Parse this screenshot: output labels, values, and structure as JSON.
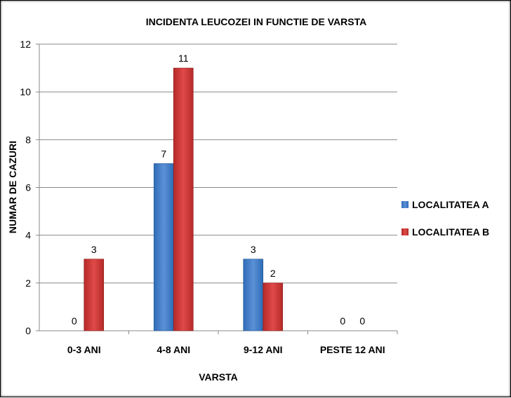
{
  "chart_data": {
    "type": "bar",
    "title": "INCIDENTA LEUCOZEI IN FUNCTIE DE VARSTA",
    "xlabel": "VARSTA",
    "ylabel": "NUMAR DE CAZURI",
    "categories": [
      "0-3 ANI",
      "4-8 ANI",
      "9-12 ANI",
      "PESTE 12 ANI"
    ],
    "series": [
      {
        "name": "LOCALITATEA A",
        "values": [
          0,
          7,
          3,
          0
        ],
        "color": "#4a7ebb"
      },
      {
        "name": "LOCALITATEA B",
        "values": [
          3,
          11,
          2,
          0
        ],
        "color": "#d43c3a"
      }
    ],
    "ylim": [
      0,
      12
    ],
    "yticks": [
      0,
      2,
      4,
      6,
      8,
      10,
      12
    ],
    "grid": true,
    "legend": "right",
    "data_labels": true
  }
}
